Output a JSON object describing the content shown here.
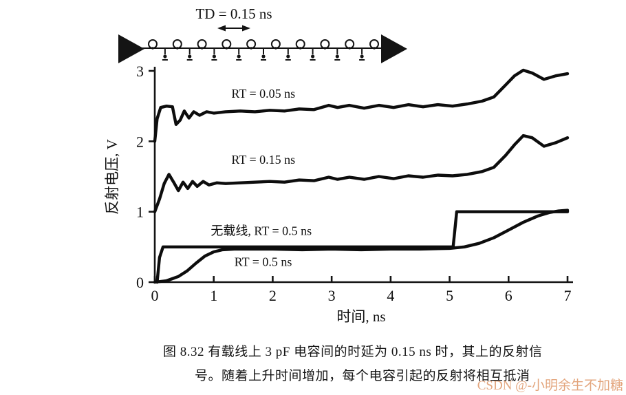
{
  "diagram": {
    "td_label": "TD = 0.15 ns",
    "tap_count": 10
  },
  "chart_data": {
    "type": "line",
    "title": "",
    "xlabel": "时间, ns",
    "ylabel": "反射电压, V",
    "xlim": [
      0,
      7
    ],
    "ylim": [
      0,
      3
    ],
    "xticks": [
      0,
      1,
      2,
      3,
      4,
      5,
      6,
      7
    ],
    "yticks": [
      0,
      1,
      2,
      3
    ],
    "grid": false,
    "legend_position": "inline-annotations",
    "series": [
      {
        "name": "RT = 0.05 ns",
        "x": [
          0.0,
          0.04,
          0.1,
          0.2,
          0.3,
          0.36,
          0.43,
          0.5,
          0.58,
          0.66,
          0.76,
          0.88,
          1.0,
          1.2,
          1.45,
          1.7,
          1.95,
          2.2,
          2.45,
          2.7,
          2.95,
          3.1,
          3.3,
          3.55,
          3.8,
          4.05,
          4.3,
          4.55,
          4.8,
          5.05,
          5.3,
          5.55,
          5.75,
          5.95,
          6.1,
          6.25,
          6.4,
          6.6,
          6.8,
          7.0
        ],
        "y": [
          2.0,
          2.32,
          2.48,
          2.5,
          2.49,
          2.24,
          2.3,
          2.43,
          2.33,
          2.42,
          2.37,
          2.42,
          2.4,
          2.42,
          2.43,
          2.42,
          2.44,
          2.43,
          2.46,
          2.45,
          2.51,
          2.48,
          2.51,
          2.47,
          2.51,
          2.48,
          2.52,
          2.49,
          2.52,
          2.5,
          2.53,
          2.57,
          2.63,
          2.8,
          2.93,
          3.01,
          2.97,
          2.88,
          2.93,
          2.96
        ]
      },
      {
        "name": "RT = 0.15 ns",
        "x": [
          0.0,
          0.08,
          0.16,
          0.24,
          0.32,
          0.4,
          0.48,
          0.56,
          0.64,
          0.72,
          0.82,
          0.92,
          1.05,
          1.2,
          1.45,
          1.7,
          1.95,
          2.2,
          2.45,
          2.7,
          2.95,
          3.1,
          3.3,
          3.55,
          3.8,
          4.05,
          4.3,
          4.55,
          4.8,
          5.05,
          5.3,
          5.55,
          5.75,
          5.95,
          6.1,
          6.25,
          6.4,
          6.6,
          6.8,
          7.0
        ],
        "y": [
          1.0,
          1.18,
          1.4,
          1.53,
          1.42,
          1.3,
          1.42,
          1.33,
          1.43,
          1.36,
          1.43,
          1.38,
          1.41,
          1.4,
          1.41,
          1.42,
          1.43,
          1.42,
          1.45,
          1.44,
          1.49,
          1.46,
          1.49,
          1.46,
          1.5,
          1.47,
          1.51,
          1.49,
          1.52,
          1.51,
          1.53,
          1.57,
          1.63,
          1.8,
          1.95,
          2.08,
          2.05,
          1.93,
          1.98,
          2.05
        ]
      },
      {
        "name": "无载线, RT = 0.5 ns",
        "x": [
          0.04,
          0.08,
          0.14,
          5.06,
          5.12,
          7.0
        ],
        "y": [
          0.0,
          0.35,
          0.5,
          0.5,
          1.0,
          1.0
        ]
      },
      {
        "name": "RT = 0.5 ns",
        "x": [
          0.0,
          0.2,
          0.4,
          0.55,
          0.7,
          0.85,
          1.0,
          1.15,
          1.35,
          1.6,
          2.0,
          2.5,
          3.0,
          3.5,
          4.0,
          4.5,
          5.0,
          5.25,
          5.5,
          5.75,
          6.0,
          6.25,
          6.5,
          6.7,
          6.85,
          7.0
        ],
        "y": [
          0.0,
          0.02,
          0.08,
          0.16,
          0.27,
          0.37,
          0.43,
          0.46,
          0.47,
          0.47,
          0.47,
          0.46,
          0.47,
          0.46,
          0.47,
          0.47,
          0.48,
          0.5,
          0.55,
          0.63,
          0.74,
          0.85,
          0.94,
          0.99,
          1.01,
          1.02
        ]
      }
    ],
    "annotations": [
      {
        "text": "RT = 0.05 ns",
        "x": 1.3,
        "y": 2.62
      },
      {
        "text": "RT = 0.15 ns",
        "x": 1.3,
        "y": 1.68
      },
      {
        "text": "无载线, RT = 0.5 ns",
        "x": 0.95,
        "y": 0.67
      },
      {
        "text": "RT = 0.5 ns",
        "x": 1.35,
        "y": 0.23
      }
    ]
  },
  "caption": {
    "line1": "图 8.32  有载线上 3 pF 电容间的时延为 0.15 ns 时，其上的反射信",
    "line2": "号。随着上升时间增加，每个电容引起的反射将相互抵消"
  },
  "watermark": {
    "text": "CSDN @-小明余生不加糖",
    "color": "#e2a278"
  }
}
